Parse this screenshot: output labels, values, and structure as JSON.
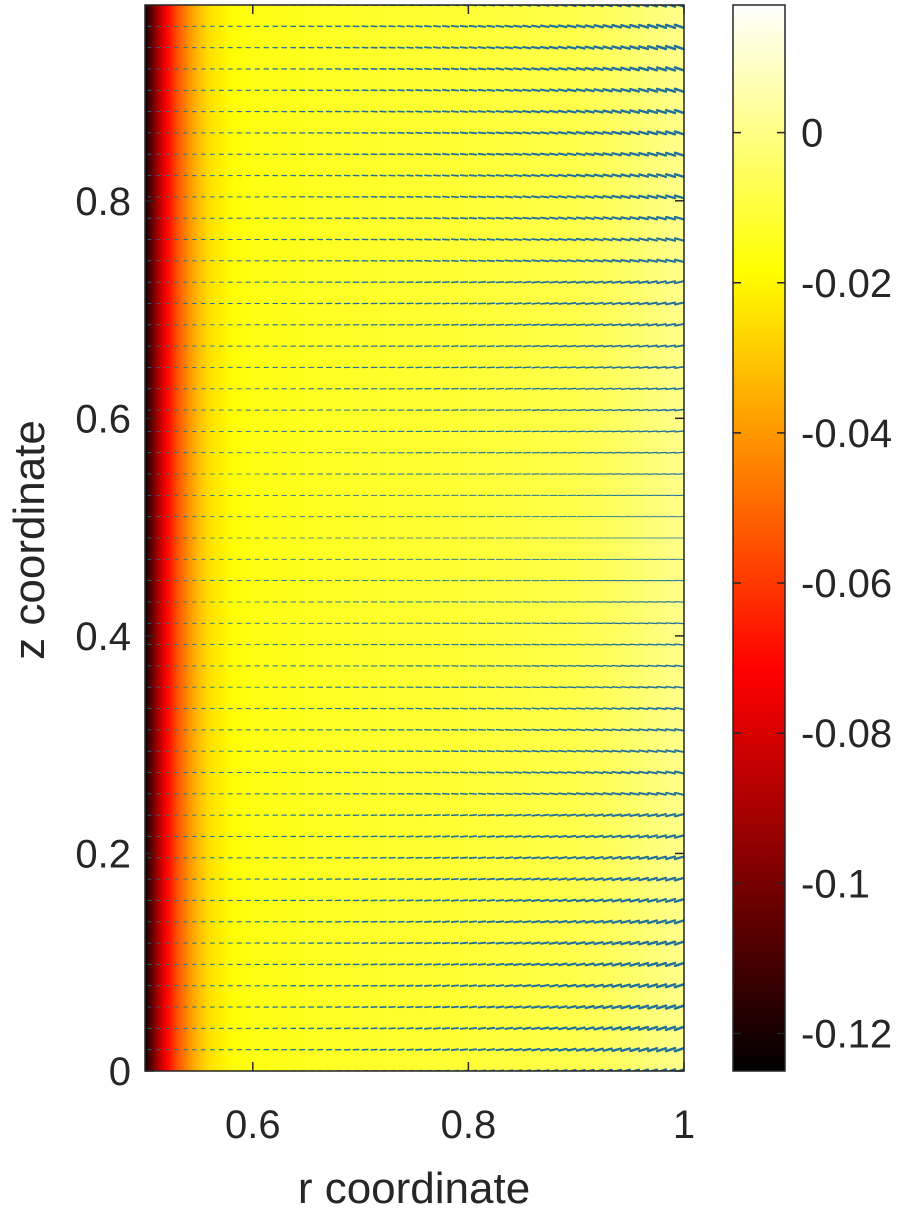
{
  "chart_data": {
    "type": "heatmap",
    "title": "",
    "xlabel": "r coordinate",
    "ylabel": "z coordinate",
    "xlim": [
      0.5,
      1.0
    ],
    "ylim": [
      0,
      0.98
    ],
    "x_ticks": [
      {
        "value": 0.6,
        "label": "0.6"
      },
      {
        "value": 0.8,
        "label": "0.8"
      },
      {
        "value": 1.0,
        "label": "1"
      }
    ],
    "y_ticks": [
      {
        "value": 0,
        "label": "0"
      },
      {
        "value": 0.2,
        "label": "0.2"
      },
      {
        "value": 0.4,
        "label": "0.4"
      },
      {
        "value": 0.6,
        "label": "0.6"
      },
      {
        "value": 0.8,
        "label": "0.8"
      }
    ],
    "colorbar": {
      "colormap": "hot",
      "clim": [
        -0.125,
        0.017
      ],
      "ticks": [
        {
          "value": 0,
          "label": "0"
        },
        {
          "value": -0.02,
          "label": "-0.02"
        },
        {
          "value": -0.04,
          "label": "-0.04"
        },
        {
          "value": -0.06,
          "label": "-0.06"
        },
        {
          "value": -0.08,
          "label": "-0.08"
        },
        {
          "value": -0.1,
          "label": "-0.1"
        },
        {
          "value": -0.12,
          "label": "-0.12"
        }
      ]
    },
    "field_profile": {
      "r": [
        0.5,
        0.51,
        0.52,
        0.53,
        0.54,
        0.55,
        0.56,
        0.58,
        0.6,
        0.65,
        0.7,
        0.8,
        0.9,
        0.95,
        1.0
      ],
      "value": [
        -0.122,
        -0.095,
        -0.072,
        -0.055,
        -0.042,
        -0.032,
        -0.025,
        -0.019,
        -0.016,
        -0.014,
        -0.013,
        -0.011,
        -0.008,
        -0.004,
        0.001
      ]
    },
    "quiver": {
      "color": "#1f6f99",
      "description_rows": 50,
      "vector_field": "radial flow, strongest near z=0 and z=0.98 at large r"
    },
    "grid": false,
    "legend": "none"
  }
}
